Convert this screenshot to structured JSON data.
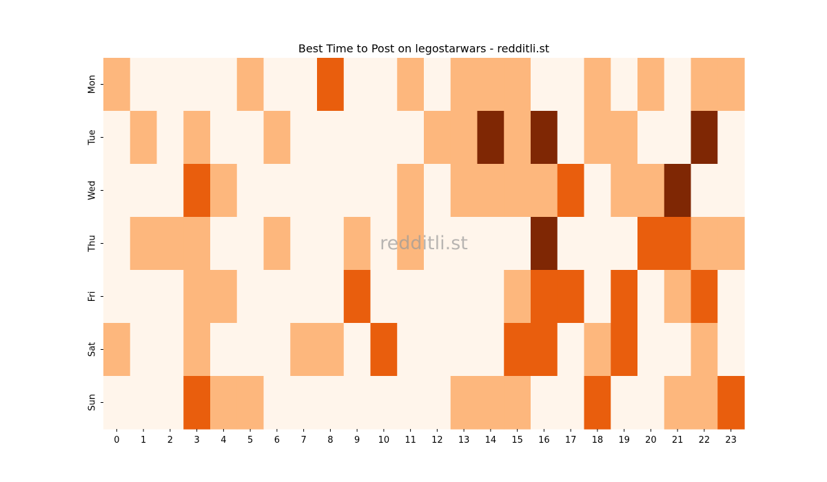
{
  "chart_data": {
    "type": "heatmap",
    "title": "Best Time to Post on legostarwars - redditli.st",
    "watermark": "redditli.st",
    "y_categories": [
      "Mon",
      "Tue",
      "Wed",
      "Thu",
      "Fri",
      "Sat",
      "Sun"
    ],
    "x_categories": [
      "0",
      "1",
      "2",
      "3",
      "4",
      "5",
      "6",
      "7",
      "8",
      "9",
      "10",
      "11",
      "12",
      "13",
      "14",
      "15",
      "16",
      "17",
      "18",
      "19",
      "20",
      "21",
      "22",
      "23"
    ],
    "values": [
      [
        1,
        0,
        0,
        0,
        0,
        1,
        0,
        0,
        2,
        0,
        0,
        1,
        0,
        1,
        1,
        1,
        0,
        0,
        1,
        0,
        1,
        0,
        1,
        1
      ],
      [
        0,
        1,
        0,
        1,
        0,
        0,
        1,
        0,
        0,
        0,
        0,
        0,
        1,
        1,
        3,
        1,
        3,
        0,
        1,
        1,
        0,
        0,
        3,
        0
      ],
      [
        0,
        0,
        0,
        2,
        1,
        0,
        0,
        0,
        0,
        0,
        0,
        1,
        0,
        1,
        1,
        1,
        1,
        2,
        0,
        1,
        1,
        3,
        0,
        0
      ],
      [
        0,
        1,
        1,
        1,
        0,
        0,
        1,
        0,
        0,
        1,
        0,
        1,
        0,
        0,
        0,
        0,
        3,
        0,
        0,
        0,
        2,
        2,
        1,
        1
      ],
      [
        0,
        0,
        0,
        1,
        1,
        0,
        0,
        0,
        0,
        2,
        0,
        0,
        0,
        0,
        0,
        1,
        2,
        2,
        0,
        2,
        0,
        1,
        2,
        0
      ],
      [
        1,
        0,
        0,
        1,
        0,
        0,
        0,
        1,
        1,
        0,
        2,
        0,
        0,
        0,
        0,
        2,
        2,
        0,
        1,
        2,
        0,
        0,
        1,
        0
      ],
      [
        0,
        0,
        0,
        2,
        1,
        1,
        0,
        0,
        0,
        0,
        0,
        0,
        0,
        1,
        1,
        1,
        0,
        0,
        2,
        0,
        0,
        1,
        1,
        2
      ]
    ],
    "colors": [
      "#fff5eb",
      "#fdb77d",
      "#e95e0d",
      "#7f2704"
    ],
    "colorbar": false
  }
}
